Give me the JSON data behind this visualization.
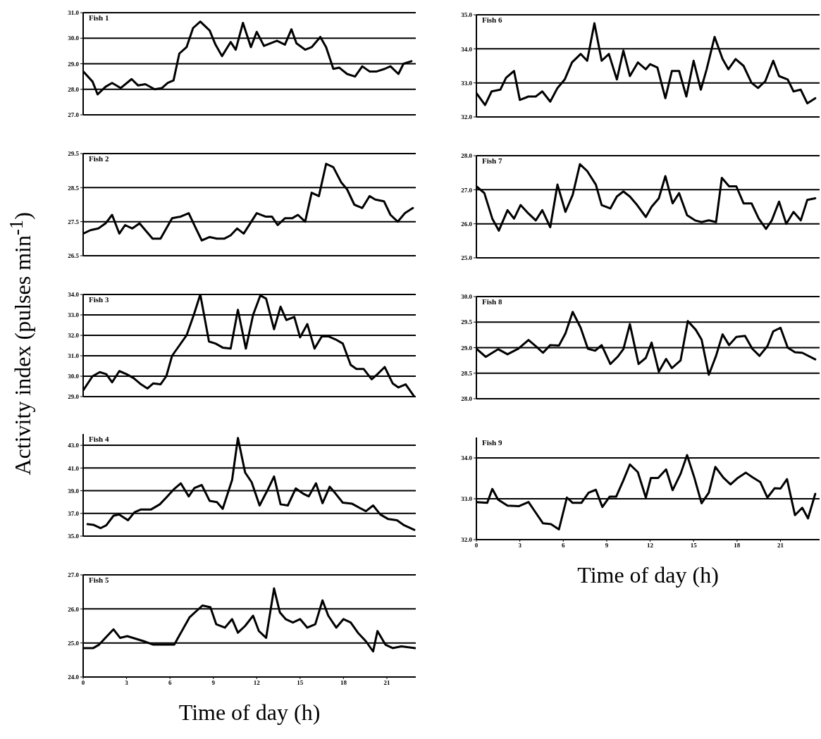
{
  "chart_data": [
    {
      "type": "line",
      "title": "Fish 1",
      "color": "#000000",
      "x": [
        0,
        0.65,
        1,
        1.55,
        2,
        2.6,
        3.35,
        3.8,
        4.3,
        4.95,
        5.45,
        5.85,
        6.25,
        6.65,
        7.15,
        7.6,
        8.1,
        8.75,
        9.15,
        9.6,
        10.2,
        10.55,
        11.05,
        11.6,
        12,
        12.5,
        13.4,
        13.95,
        14.4,
        14.75,
        15.35,
        15.8,
        16.4,
        16.8,
        17.3,
        17.7,
        18.25,
        18.8,
        19.3,
        19.8,
        20.3,
        20.85,
        21.25,
        21.8,
        22.15,
        22.7
      ],
      "values": [
        28.7,
        28.3,
        27.8,
        28.1,
        28.25,
        28.05,
        28.4,
        28.15,
        28.2,
        28.0,
        28.05,
        28.25,
        28.35,
        29.4,
        29.65,
        30.4,
        30.65,
        30.3,
        29.75,
        29.3,
        29.85,
        29.55,
        30.6,
        29.65,
        30.25,
        29.7,
        29.9,
        29.75,
        30.35,
        29.8,
        29.55,
        29.65,
        30.05,
        29.65,
        28.8,
        28.85,
        28.6,
        28.5,
        28.9,
        28.7,
        28.7,
        28.8,
        28.9,
        28.6,
        29.0,
        29.1
      ],
      "xlim": [
        0,
        23
      ],
      "xticks": [
        0,
        3,
        6,
        9,
        12,
        15,
        18,
        21
      ],
      "ylim": [
        27,
        31
      ],
      "yticks": [
        {
          "value": 27,
          "label": "27.0"
        },
        {
          "value": 28,
          "label": "28.0"
        },
        {
          "value": 29,
          "label": "29.0"
        },
        {
          "value": 30,
          "label": "30.0"
        },
        {
          "value": 31,
          "label": "31.0"
        }
      ],
      "grid": "y",
      "tick_labels": "y"
    },
    {
      "type": "line",
      "title": "Fish 2",
      "color": "#000000",
      "x": [
        0,
        0.5,
        1.05,
        1.55,
        2,
        2.5,
        2.9,
        3.4,
        3.9,
        4.3,
        4.8,
        5.35,
        6.15,
        6.75,
        7.3,
        7.8,
        8.2,
        8.75,
        9.25,
        9.75,
        10.2,
        10.65,
        11.1,
        12,
        12.6,
        13.05,
        13.45,
        13.95,
        14.45,
        14.85,
        15.35,
        15.8,
        16.3,
        16.8,
        17.3,
        17.85,
        18.25,
        18.75,
        19.3,
        19.8,
        20.2,
        20.8,
        21.25,
        21.75,
        22.25,
        22.8
      ],
      "values": [
        27.15,
        27.25,
        27.3,
        27.45,
        27.7,
        27.15,
        27.4,
        27.3,
        27.45,
        27.25,
        27.0,
        27.0,
        27.6,
        27.65,
        27.75,
        27.3,
        26.95,
        27.05,
        27.0,
        27.0,
        27.1,
        27.3,
        27.15,
        27.75,
        27.65,
        27.65,
        27.4,
        27.6,
        27.6,
        27.7,
        27.5,
        28.35,
        28.25,
        29.2,
        29.1,
        28.65,
        28.45,
        28.0,
        27.9,
        28.25,
        28.15,
        28.1,
        27.7,
        27.5,
        27.75,
        27.9
      ],
      "xlim": [
        0,
        23
      ],
      "xticks": [
        0,
        3,
        6,
        9,
        12,
        15,
        18,
        21
      ],
      "ylim": [
        26.5,
        29.5
      ],
      "yticks": [
        26.5,
        27.5,
        28.5,
        29.5
      ],
      "grid": "y",
      "tick_labels": "y"
    },
    {
      "type": "line",
      "title": "Fish 3",
      "ylabel": "Activity index (pulses min$^{-1}$)",
      "color": "#000000",
      "x": [
        0,
        0.65,
        1.15,
        1.6,
        2,
        2.5,
        3,
        3.5,
        4,
        4.45,
        4.85,
        5.35,
        5.75,
        6.15,
        6.65,
        7.15,
        7.65,
        8.1,
        8.7,
        9.15,
        9.65,
        10.2,
        10.7,
        11.25,
        11.75,
        12.25,
        12.65,
        13.2,
        13.65,
        14.05,
        14.6,
        15,
        15.5,
        16,
        16.5,
        16.95,
        17.45,
        17.95,
        18.5,
        18.9,
        19.4,
        19.95,
        20.35,
        20.85,
        21.4,
        21.8,
        22.3,
        22.9
      ],
      "values": [
        29.3,
        30.0,
        30.2,
        30.1,
        29.7,
        30.25,
        30.1,
        29.9,
        29.6,
        29.4,
        29.65,
        29.6,
        30.0,
        31.0,
        31.5,
        32.0,
        33.0,
        34.0,
        31.7,
        31.6,
        31.4,
        31.35,
        33.25,
        31.35,
        33.0,
        33.95,
        33.8,
        32.3,
        33.4,
        32.75,
        32.9,
        31.9,
        32.55,
        31.35,
        31.95,
        31.95,
        31.8,
        31.6,
        30.55,
        30.35,
        30.35,
        29.85,
        30.1,
        30.45,
        29.65,
        29.45,
        29.6,
        29.0
      ],
      "xlim": [
        0,
        23
      ],
      "xticks": [
        0,
        3,
        6,
        9,
        12,
        15,
        18,
        21
      ],
      "ylim": [
        29,
        34
      ],
      "yticks": [
        {
          "value": 29,
          "label": "29.0"
        },
        {
          "value": 30,
          "label": "30.0"
        },
        {
          "value": 31,
          "label": "31.0"
        },
        {
          "value": 32,
          "label": "32.0"
        },
        {
          "value": 33,
          "label": "33.0"
        },
        {
          "value": 34,
          "label": "34.0"
        }
      ],
      "grid": "y",
      "tick_labels": "y"
    },
    {
      "type": "line",
      "title": "Fish 4",
      "color": "#000000",
      "x": [
        0.3,
        0.7,
        1.2,
        1.6,
        2.1,
        2.5,
        3.1,
        3.55,
        4,
        4.7,
        5.3,
        5.75,
        6.25,
        6.75,
        7.3,
        7.7,
        8.2,
        8.75,
        9.25,
        9.65,
        10.3,
        10.7,
        11.2,
        11.65,
        12.2,
        12.75,
        13.2,
        13.65,
        14.15,
        14.7,
        15.2,
        15.6,
        16.1,
        16.55,
        17.05,
        17.45,
        17.95,
        18.6,
        19.1,
        19.55,
        20.05,
        20.55,
        21.1,
        21.7,
        22.2,
        22.9
      ],
      "values": [
        36.05,
        36.0,
        35.7,
        35.95,
        36.8,
        36.9,
        36.4,
        37.1,
        37.35,
        37.35,
        37.8,
        38.4,
        39.1,
        39.65,
        38.5,
        39.25,
        39.5,
        38.1,
        38.0,
        37.4,
        39.95,
        43.65,
        40.6,
        39.75,
        37.7,
        39.05,
        40.25,
        37.8,
        37.7,
        39.2,
        38.75,
        38.5,
        39.65,
        37.9,
        39.35,
        38.75,
        37.95,
        37.85,
        37.5,
        37.2,
        37.7,
        36.9,
        36.5,
        36.4,
        35.95,
        35.55
      ],
      "xlim": [
        0,
        23
      ],
      "xticks": [
        0,
        3,
        6,
        9,
        12,
        15,
        18,
        21
      ],
      "ylim": [
        35,
        44
      ],
      "yticks": [
        {
          "value": 35,
          "label": "35.0"
        },
        {
          "value": 37,
          "label": "37.0"
        },
        {
          "value": 39,
          "label": "39.0"
        },
        {
          "value": 41,
          "label": "41.0"
        },
        {
          "value": 43,
          "label": "43.0"
        }
      ],
      "grid": "y",
      "tick_labels": "y"
    },
    {
      "type": "line",
      "title": "Fish 5",
      "xlabel": "Time of day (h)",
      "color": "#000000",
      "x": [
        0,
        0.7,
        1.1,
        2.1,
        2.55,
        3.05,
        4.2,
        4.85,
        6.3,
        7.35,
        8.25,
        8.8,
        9.2,
        9.8,
        10.3,
        10.7,
        11.2,
        11.75,
        12.15,
        12.65,
        13.2,
        13.6,
        14,
        14.5,
        15,
        15.5,
        16.05,
        16.55,
        16.95,
        17.5,
        18,
        18.5,
        19,
        19.55,
        20.05,
        20.35,
        20.9,
        21.4,
        22,
        22.95
      ],
      "values": [
        24.85,
        24.85,
        24.95,
        25.4,
        25.15,
        25.2,
        25.05,
        24.95,
        24.95,
        25.75,
        26.1,
        26.05,
        25.55,
        25.45,
        25.7,
        25.3,
        25.5,
        25.8,
        25.35,
        25.15,
        26.6,
        25.9,
        25.7,
        25.6,
        25.7,
        25.45,
        25.55,
        26.25,
        25.8,
        25.45,
        25.7,
        25.6,
        25.3,
        25.05,
        24.75,
        25.35,
        24.95,
        24.85,
        24.9,
        24.85
      ],
      "xlim": [
        0,
        23
      ],
      "xticks": [
        0,
        3,
        6,
        9,
        12,
        15,
        18,
        21
      ],
      "ylim": [
        24,
        27
      ],
      "yticks": [
        {
          "value": 24,
          "label": "24.0"
        },
        {
          "value": 25,
          "label": "25.0"
        },
        {
          "value": 26,
          "label": "26.0"
        },
        {
          "value": 27,
          "label": "27.0"
        }
      ],
      "grid": "y"
    },
    {
      "type": "line",
      "title": "Fish 6",
      "color": "#000000",
      "x": [
        0,
        0.6,
        1.05,
        1.65,
        2.05,
        2.6,
        3,
        3.6,
        4.1,
        4.55,
        5.1,
        5.6,
        6.1,
        6.6,
        7.2,
        7.65,
        8.15,
        8.65,
        9.15,
        9.7,
        10.15,
        10.6,
        11.15,
        11.7,
        12,
        12.5,
        13.05,
        13.5,
        14,
        14.5,
        15,
        15.5,
        15.9,
        16.45,
        17,
        17.4,
        17.9,
        18.45,
        19,
        19.45,
        19.95,
        20.5,
        20.9,
        21.5,
        21.9,
        22.4,
        22.85,
        23.4
      ],
      "values": [
        32.7,
        32.35,
        32.75,
        32.8,
        33.15,
        33.35,
        32.5,
        32.6,
        32.6,
        32.75,
        32.45,
        32.85,
        33.1,
        33.6,
        33.85,
        33.65,
        34.75,
        33.65,
        33.85,
        33.1,
        33.95,
        33.2,
        33.6,
        33.4,
        33.55,
        33.45,
        32.55,
        33.35,
        33.35,
        32.6,
        33.65,
        32.8,
        33.4,
        34.35,
        33.7,
        33.4,
        33.7,
        33.5,
        33.0,
        32.85,
        33.05,
        33.65,
        33.2,
        33.1,
        32.75,
        32.8,
        32.4,
        32.55
      ],
      "xlim": [
        0,
        23.7
      ],
      "xticks": [
        0,
        3,
        6,
        9,
        12,
        15,
        18,
        21
      ],
      "ylim": [
        32,
        35
      ],
      "yticks": [
        {
          "value": 32,
          "label": "32.0"
        },
        {
          "value": 33,
          "label": "33.0"
        },
        {
          "value": 34,
          "label": "34.0"
        },
        {
          "value": 35,
          "label": "35.0"
        }
      ],
      "grid": "y",
      "tick_labels": "y"
    },
    {
      "type": "line",
      "title": "Fish 7",
      "color": "#000000",
      "x": [
        0,
        0.55,
        1.1,
        1.55,
        2.15,
        2.6,
        3.05,
        3.6,
        4.1,
        4.55,
        5.1,
        5.6,
        6.15,
        6.65,
        7.15,
        7.65,
        8.25,
        8.65,
        9.25,
        9.7,
        10.15,
        10.6,
        11.1,
        11.7,
        12.1,
        12.6,
        13.05,
        13.55,
        14,
        14.55,
        15.1,
        15.55,
        16.05,
        16.55,
        16.95,
        17.45,
        17.95,
        18.45,
        19,
        19.5,
        20,
        20.4,
        20.9,
        21.4,
        21.9,
        22.4,
        22.85,
        23.4
      ],
      "values": [
        27.1,
        26.9,
        26.15,
        25.8,
        26.4,
        26.15,
        26.55,
        26.3,
        26.1,
        26.4,
        25.9,
        27.15,
        26.35,
        26.85,
        27.75,
        27.55,
        27.15,
        26.55,
        26.45,
        26.8,
        26.95,
        26.8,
        26.55,
        26.2,
        26.5,
        26.75,
        27.4,
        26.6,
        26.9,
        26.25,
        26.1,
        26.05,
        26.1,
        26.05,
        27.35,
        27.1,
        27.1,
        26.6,
        26.6,
        26.15,
        25.85,
        26.1,
        26.65,
        26.0,
        26.35,
        26.1,
        26.7,
        26.75
      ],
      "xlim": [
        0,
        23.7
      ],
      "xticks": [
        0,
        3,
        6,
        9,
        12,
        15,
        18,
        21
      ],
      "ylim": [
        25,
        28
      ],
      "yticks": [
        {
          "value": 25,
          "label": "25.0"
        },
        {
          "value": 26,
          "label": "26.0"
        },
        {
          "value": 27,
          "label": "27.0"
        },
        {
          "value": 28,
          "label": "28.0"
        }
      ],
      "grid": "y",
      "tick_labels": "y"
    },
    {
      "type": "line",
      "title": "Fish 8",
      "color": "#000000",
      "x": [
        0,
        0.65,
        1.5,
        2.15,
        2.9,
        3.6,
        4.1,
        4.6,
        5.1,
        5.7,
        6.15,
        6.65,
        7.2,
        7.7,
        8.2,
        8.65,
        9.25,
        9.75,
        10.15,
        10.6,
        11.2,
        11.7,
        12.1,
        12.6,
        13.1,
        13.5,
        14.1,
        14.6,
        15.15,
        15.55,
        16.05,
        16.55,
        17,
        17.45,
        17.95,
        18.55,
        19.05,
        19.55,
        20.1,
        20.5,
        21,
        21.5,
        22,
        22.5,
        23.4
      ],
      "values": [
        28.98,
        28.82,
        28.97,
        28.87,
        28.98,
        29.15,
        29.03,
        28.9,
        29.05,
        29.04,
        29.28,
        29.7,
        29.39,
        28.98,
        28.94,
        29.05,
        28.68,
        28.82,
        28.97,
        29.46,
        28.68,
        28.8,
        29.1,
        28.53,
        28.78,
        28.6,
        28.75,
        29.52,
        29.35,
        29.16,
        28.47,
        28.84,
        29.26,
        29.05,
        29.21,
        29.23,
        28.98,
        28.84,
        29.03,
        29.32,
        29.39,
        29.0,
        28.91,
        28.9,
        28.77
      ],
      "xlim": [
        0,
        23.7
      ],
      "xticks": [
        0,
        3,
        6,
        9,
        12,
        15,
        18,
        21
      ],
      "ylim": [
        28,
        30
      ],
      "yticks": [
        {
          "value": 28,
          "label": "28.0"
        },
        {
          "value": 28.5,
          "label": "28.5"
        },
        {
          "value": 29,
          "label": "29.0"
        },
        {
          "value": 29.5,
          "label": "29.5"
        },
        {
          "value": 30,
          "label": "30.0"
        }
      ],
      "grid": "y",
      "tick_labels": "y"
    },
    {
      "type": "line",
      "title": "Fish 9",
      "xlabel": "Time of day (h)",
      "color": "#000000",
      "x": [
        0,
        0.75,
        1.1,
        1.5,
        2.15,
        2.95,
        3.6,
        4.1,
        4.6,
        5.15,
        5.7,
        6.25,
        6.65,
        7.25,
        7.75,
        8.25,
        8.7,
        9.2,
        9.65,
        10.15,
        10.6,
        11.15,
        11.7,
        12.05,
        12.55,
        13.1,
        13.55,
        14.1,
        14.55,
        15.05,
        15.55,
        16.05,
        16.5,
        17.05,
        17.55,
        18.05,
        18.6,
        19.05,
        19.6,
        20.1,
        20.6,
        21,
        21.45,
        22,
        22.5,
        22.9,
        23.4
      ],
      "values": [
        32.92,
        32.9,
        33.24,
        32.98,
        32.83,
        32.82,
        32.92,
        32.66,
        32.4,
        32.38,
        32.25,
        33.03,
        32.9,
        32.9,
        33.15,
        33.22,
        32.8,
        33.05,
        33.05,
        33.45,
        33.84,
        33.65,
        33.03,
        33.51,
        33.51,
        33.72,
        33.21,
        33.61,
        34.07,
        33.52,
        32.89,
        33.15,
        33.78,
        33.52,
        33.35,
        33.51,
        33.64,
        33.53,
        33.41,
        33.03,
        33.26,
        33.25,
        33.48,
        32.6,
        32.78,
        32.52,
        33.12
      ],
      "xlim": [
        0,
        23.7
      ],
      "xticks": [
        0,
        3,
        6,
        9,
        12,
        15,
        18,
        21
      ],
      "ylim": [
        32,
        34.5
      ],
      "yticks": [
        {
          "value": 32,
          "label": "32.0"
        },
        {
          "value": 33,
          "label": "33.0"
        },
        {
          "value": 34,
          "label": "34.0"
        }
      ],
      "grid": "y"
    }
  ]
}
